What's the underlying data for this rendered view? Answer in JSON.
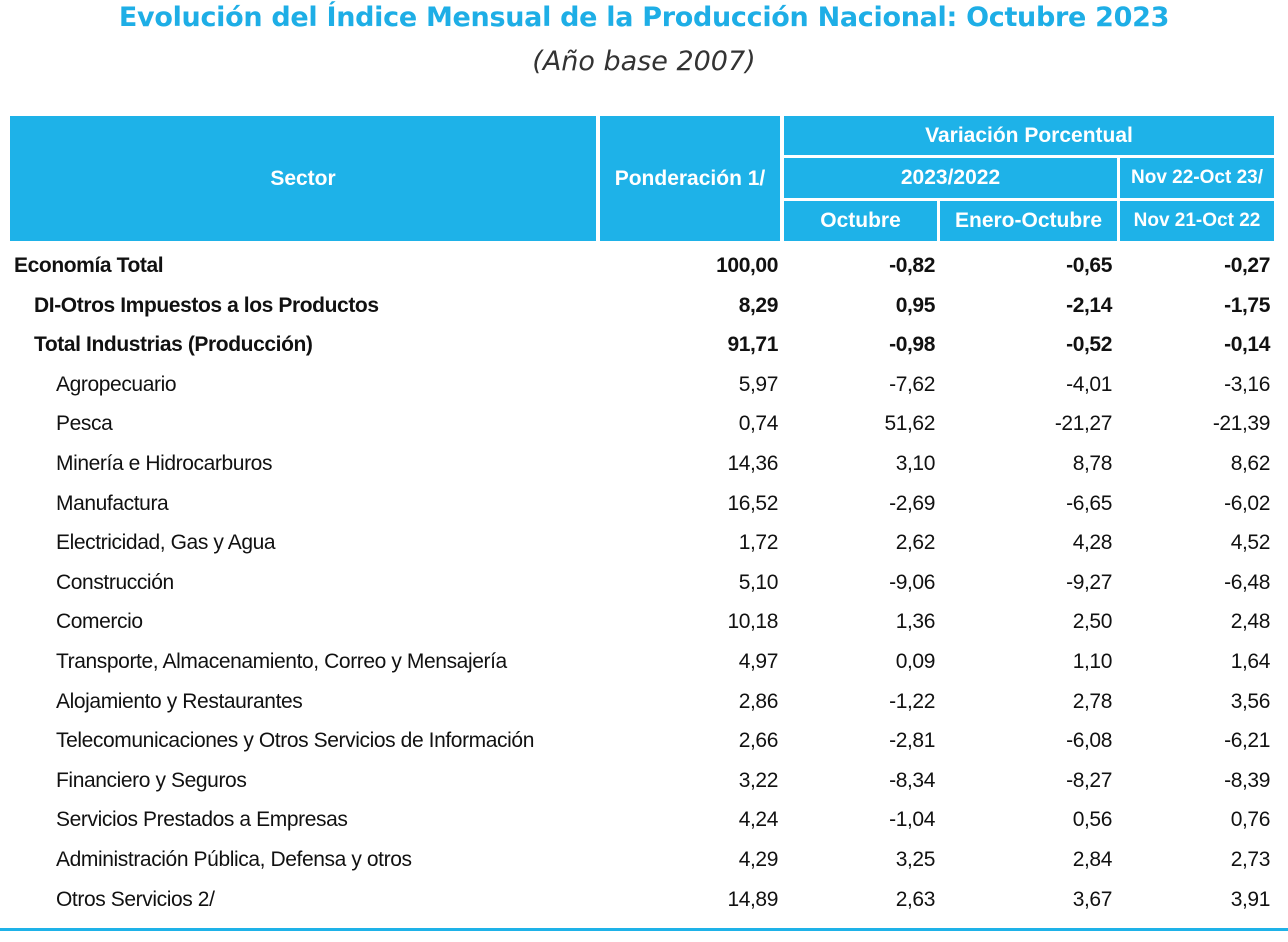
{
  "title": "Evolución del Índice Mensual de la Producción Nacional: Octubre 2023",
  "subtitle": "(Año base 2007)",
  "header": {
    "sector": "Sector",
    "ponderacion": "Ponderación 1/",
    "variacion": "Variación Porcentual",
    "period_2023_2022": "2023/2022",
    "octubre": "Octubre",
    "enero_octubre": "Enero-Octubre",
    "nov_line1": "Nov 22-Oct 23/",
    "nov_line2": "Nov 21-Oct 22"
  },
  "colors": {
    "header_background": "#1eb2e8",
    "title": "#1eaee6",
    "header_text": "#ffffff"
  },
  "rows": [
    {
      "sector": "Economía Total",
      "ponderacion": "100,00",
      "octubre": "-0,82",
      "enero_octubre": "-0,65",
      "nov": "-0,27",
      "level": 0,
      "bold": true
    },
    {
      "sector": "DI-Otros Impuestos a los Productos",
      "ponderacion": "8,29",
      "octubre": "0,95",
      "enero_octubre": "-2,14",
      "nov": "-1,75",
      "level": 1,
      "bold": true
    },
    {
      "sector": "Total  Industrias (Producción)",
      "ponderacion": "91,71",
      "octubre": "-0,98",
      "enero_octubre": "-0,52",
      "nov": "-0,14",
      "level": 1,
      "bold": true
    },
    {
      "sector": "Agropecuario",
      "ponderacion": "5,97",
      "octubre": "-7,62",
      "enero_octubre": "-4,01",
      "nov": "-3,16",
      "level": 2,
      "bold": false
    },
    {
      "sector": "Pesca",
      "ponderacion": "0,74",
      "octubre": "51,62",
      "enero_octubre": "-21,27",
      "nov": "-21,39",
      "level": 2,
      "bold": false
    },
    {
      "sector": "Minería e Hidrocarburos",
      "ponderacion": "14,36",
      "octubre": "3,10",
      "enero_octubre": "8,78",
      "nov": "8,62",
      "level": 2,
      "bold": false
    },
    {
      "sector": "Manufactura",
      "ponderacion": "16,52",
      "octubre": "-2,69",
      "enero_octubre": "-6,65",
      "nov": "-6,02",
      "level": 2,
      "bold": false
    },
    {
      "sector": "Electricidad, Gas y Agua",
      "ponderacion": "1,72",
      "octubre": "2,62",
      "enero_octubre": "4,28",
      "nov": "4,52",
      "level": 2,
      "bold": false
    },
    {
      "sector": "Construcción",
      "ponderacion": "5,10",
      "octubre": "-9,06",
      "enero_octubre": "-9,27",
      "nov": "-6,48",
      "level": 2,
      "bold": false
    },
    {
      "sector": "Comercio",
      "ponderacion": "10,18",
      "octubre": "1,36",
      "enero_octubre": "2,50",
      "nov": "2,48",
      "level": 2,
      "bold": false
    },
    {
      "sector": "Transporte, Almacenamiento, Correo y Mensajería",
      "ponderacion": "4,97",
      "octubre": "0,09",
      "enero_octubre": "1,10",
      "nov": "1,64",
      "level": 2,
      "bold": false
    },
    {
      "sector": "Alojamiento y Restaurantes",
      "ponderacion": "2,86",
      "octubre": "-1,22",
      "enero_octubre": "2,78",
      "nov": "3,56",
      "level": 2,
      "bold": false
    },
    {
      "sector": "Telecomunicaciones y Otros Servicios de Información",
      "ponderacion": "2,66",
      "octubre": "-2,81",
      "enero_octubre": "-6,08",
      "nov": "-6,21",
      "level": 2,
      "bold": false
    },
    {
      "sector": "Financiero y Seguros",
      "ponderacion": "3,22",
      "octubre": "-8,34",
      "enero_octubre": "-8,27",
      "nov": "-8,39",
      "level": 2,
      "bold": false
    },
    {
      "sector": "Servicios Prestados a Empresas",
      "ponderacion": "4,24",
      "octubre": "-1,04",
      "enero_octubre": "0,56",
      "nov": "0,76",
      "level": 2,
      "bold": false
    },
    {
      "sector": "Administración Pública, Defensa y otros",
      "ponderacion": "4,29",
      "octubre": "3,25",
      "enero_octubre": "2,84",
      "nov": "2,73",
      "level": 2,
      "bold": false
    },
    {
      "sector": "Otros Servicios 2/",
      "ponderacion": "14,89",
      "octubre": "2,63",
      "enero_octubre": "3,67",
      "nov": "3,91",
      "level": 2,
      "bold": false
    }
  ]
}
